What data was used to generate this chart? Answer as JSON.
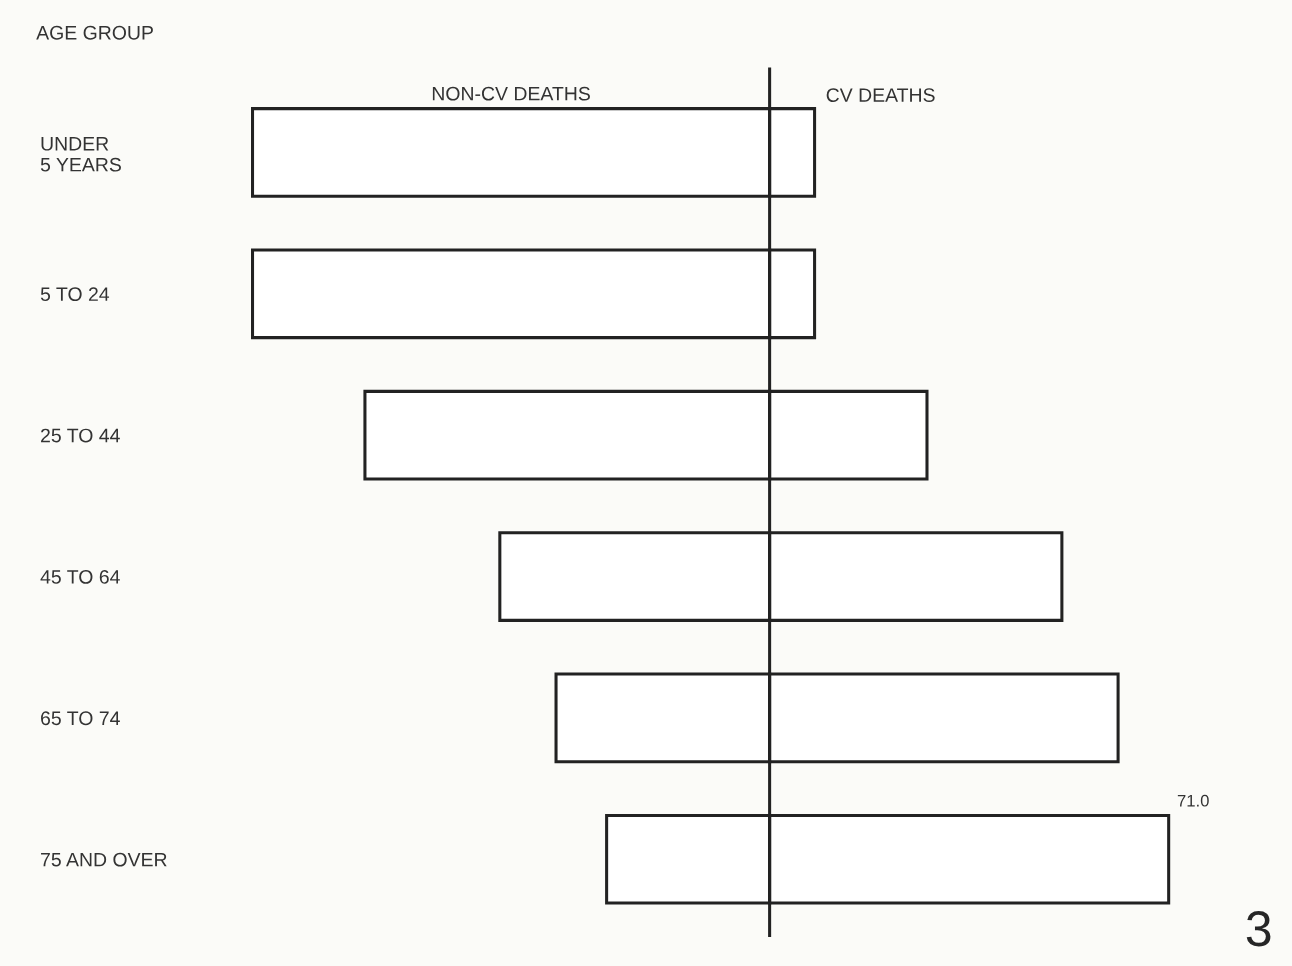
{
  "chart_data": {
    "type": "bar",
    "orientation": "horizontal",
    "stacked": true,
    "ylabel": "AGE GROUP",
    "categories": [
      "UNDER\n5 YEARS",
      "5 TO 24",
      "25 TO 44",
      "45 TO 64",
      "65 TO 74",
      "75 AND OVER"
    ],
    "series": [
      {
        "name": "NON-CV DEATHS",
        "color": "#ffffff",
        "values": [
          -92,
          -92,
          -72,
          -48,
          -38,
          -29
        ]
      },
      {
        "name": "CV DEATHS",
        "color": "#ffffff",
        "values": [
          8,
          8,
          28,
          52,
          62,
          71
        ],
        "value_labels": [
          null,
          null,
          null,
          null,
          null,
          "71.0"
        ]
      }
    ],
    "annotations": [
      "3"
    ],
    "legend": false,
    "grid": false
  }
}
